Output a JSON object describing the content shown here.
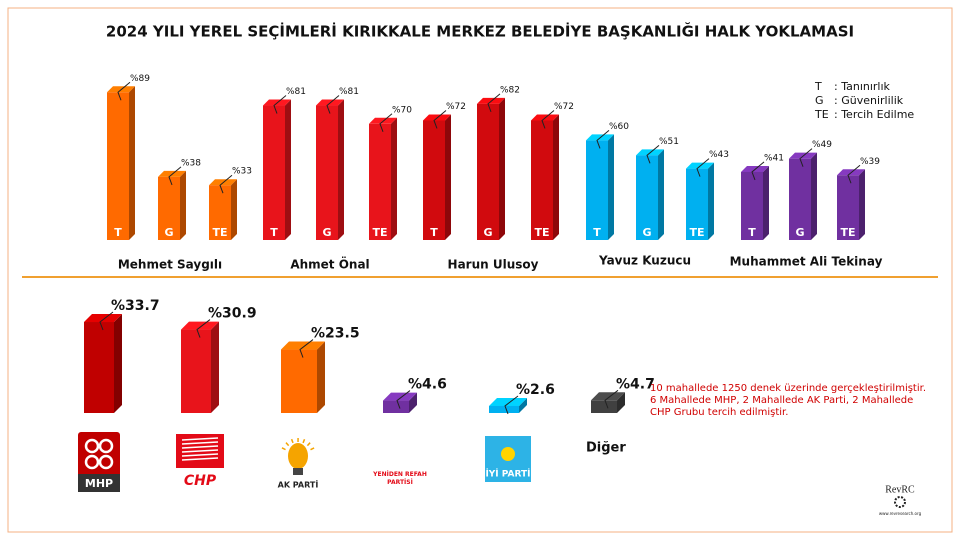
{
  "title": "2024 YILI YEREL SEÇİMLERİ KIRIKKALE MERKEZ BELEDİYE BAŞKANLIĞI HALK YOKLAMASI",
  "legend": [
    {
      "key": "T",
      "label": ": Tanınırlık"
    },
    {
      "key": "G",
      "label": ": Güvenirlilik"
    },
    {
      "key": "TE",
      "label": ": Tercih Edilme"
    }
  ],
  "chart_data": [
    {
      "type": "bar",
      "categories": [
        "Mehmet Saygılı",
        "Ahmet Önal",
        "Harun Ulusoy",
        "Yavuz Kuzucu",
        "Muhammet Ali Tekinay"
      ],
      "colors": [
        "#ff6a00",
        "#e8141b",
        "#d10a0e",
        "#00b0f0",
        "#7030a0"
      ],
      "series": [
        {
          "name": "T",
          "values": [
            89,
            81,
            72,
            60,
            41
          ],
          "value_labels": [
            "%89",
            "%81",
            "%72",
            "%60",
            "%41"
          ]
        },
        {
          "name": "G",
          "values": [
            38,
            81,
            82,
            51,
            49
          ],
          "value_labels": [
            "%38",
            "%81",
            "%82",
            "%51",
            "%49"
          ]
        },
        {
          "name": "TE",
          "values": [
            33,
            70,
            72,
            43,
            39
          ],
          "value_labels": [
            "%33",
            "%70",
            "%72",
            "%43",
            "%39"
          ]
        }
      ]
    },
    {
      "type": "bar",
      "categories": [
        "MHP",
        "CHP",
        "AK PARTİ",
        "YENİDEN REFAH PARTİSİ",
        "İYİ PARTİ",
        "Diğer"
      ],
      "colors": [
        "#c00000",
        "#e8141b",
        "#ff6a00",
        "#7030a0",
        "#00b0f0",
        "#404040"
      ],
      "values": [
        33.7,
        30.9,
        23.5,
        4.6,
        2.6,
        4.7
      ],
      "value_labels": [
        "%33.7",
        "%30.9",
        "%23.5",
        "%4.6",
        "%2.6",
        "%4.7"
      ]
    }
  ],
  "note": [
    "10 mahallede 1250 denek üzerinde gerçekleştirilmiştir.",
    "6 Mahallede MHP, 2 Mahallede AK Parti, 2 Mahallede",
    "CHP Grubu tercih edilmiştir."
  ],
  "brand": {
    "name": "RevRC",
    "url": "www.revresearch.org"
  }
}
